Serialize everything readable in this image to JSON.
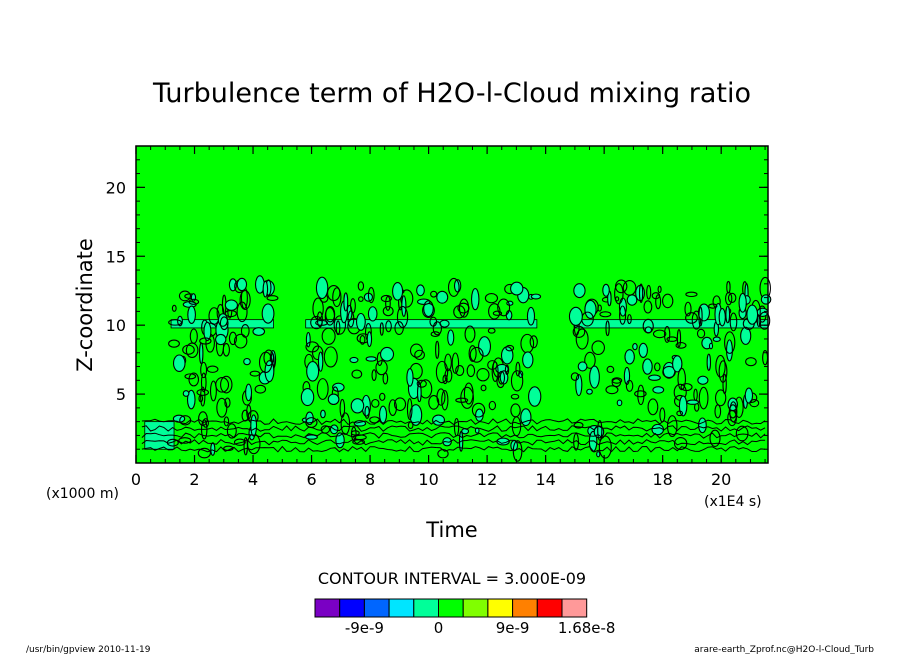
{
  "chart_data": {
    "type": "contour",
    "title": "Turbulence term of H2O-l-Cloud mixing ratio",
    "xlabel": "Time",
    "ylabel": "Z-coordinate",
    "x_unit": "(x1E4 s)",
    "y_unit": "(x1000 m)",
    "xlim": [
      0,
      21.6
    ],
    "ylim": [
      0,
      23
    ],
    "x_ticks": [
      0,
      2,
      4,
      6,
      8,
      10,
      12,
      14,
      16,
      18,
      20
    ],
    "y_ticks": [
      5,
      10,
      15,
      20
    ],
    "contour_interval_text": "CONTOUR INTERVAL = 3.000E-09",
    "colorbar": {
      "colors": [
        "#7a00c4",
        "#0000ff",
        "#0066ff",
        "#00e5ff",
        "#00ff99",
        "#00ff00",
        "#80ff00",
        "#ffff00",
        "#ff8000",
        "#ff0000",
        "#ff9999"
      ],
      "labels": [
        {
          "text": "-9e-9",
          "after_level": 2
        },
        {
          "text": "0",
          "after_level": 5
        },
        {
          "text": "9e-9",
          "after_level": 8
        },
        {
          "text": "1.68e-8",
          "after_level": 11
        }
      ]
    },
    "background_color": "#00ff00",
    "active_layer_top": 13,
    "active_regions_x": [
      [
        1.2,
        4.7
      ],
      [
        5.8,
        13.7
      ],
      [
        15.0,
        21.6
      ]
    ],
    "quiet_regions_x": [
      [
        4.7,
        5.8
      ],
      [
        13.7,
        15.0
      ]
    ],
    "secondary_fill_color": "#00ff99"
  },
  "footer": {
    "left": "/usr/bin/gpview   2010-11-19",
    "right": "arare-earth_Zprof.nc@H2O-l-Cloud_Turb"
  }
}
